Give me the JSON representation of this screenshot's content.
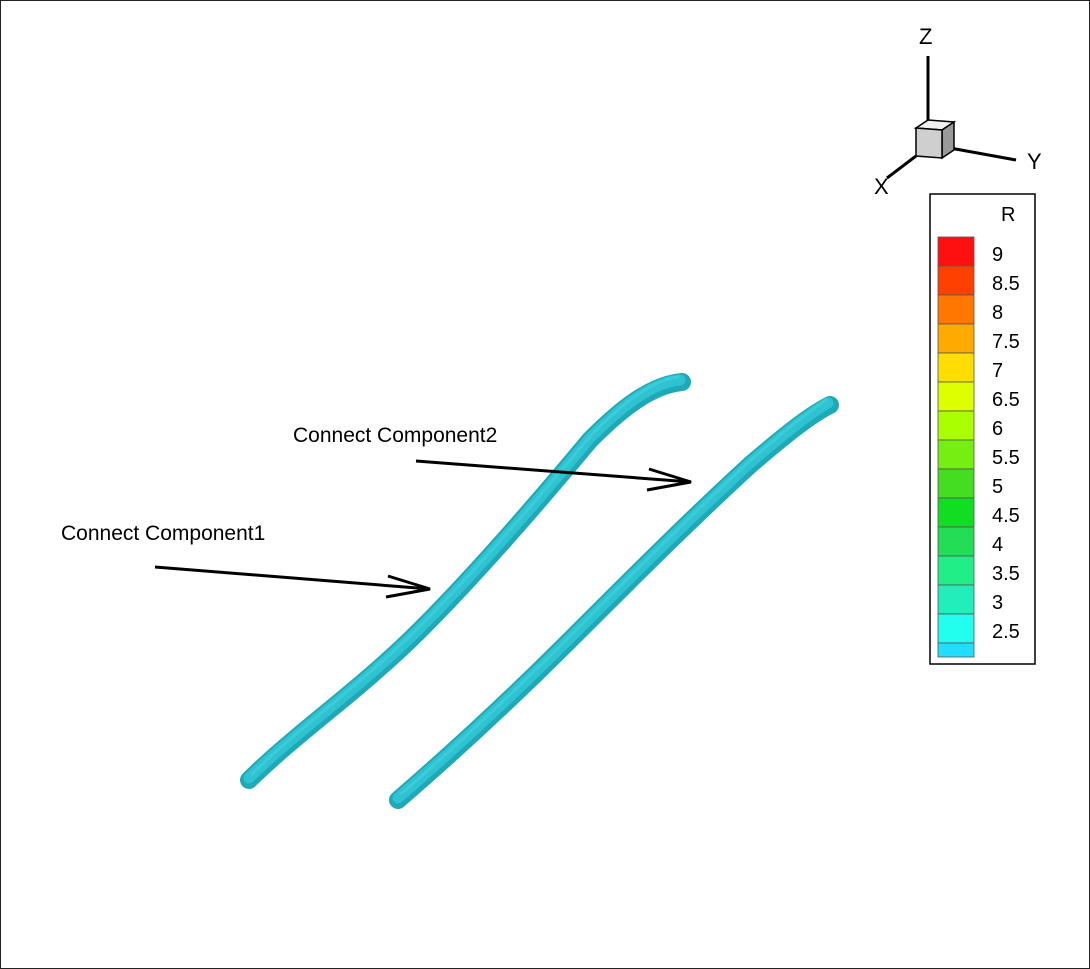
{
  "annotations": {
    "component1": "Connect Component1",
    "component2": "Connect Component2"
  },
  "axes_triad": {
    "x_label": "X",
    "y_label": "Y",
    "z_label": "Z"
  },
  "legend": {
    "variable": "R",
    "levels": [
      {
        "label": "9",
        "color": "#ff1010"
      },
      {
        "label": "8.5",
        "color": "#ff4000"
      },
      {
        "label": "8",
        "color": "#ff7700"
      },
      {
        "label": "7.5",
        "color": "#ffaa00"
      },
      {
        "label": "7",
        "color": "#ffdd00"
      },
      {
        "label": "6.5",
        "color": "#ddff00"
      },
      {
        "label": "6",
        "color": "#aaff00"
      },
      {
        "label": "5.5",
        "color": "#77ee11"
      },
      {
        "label": "5",
        "color": "#44dd22"
      },
      {
        "label": "4.5",
        "color": "#11dd22"
      },
      {
        "label": "4",
        "color": "#22dd55"
      },
      {
        "label": "3.5",
        "color": "#22ee88"
      },
      {
        "label": "3",
        "color": "#22eebb"
      },
      {
        "label": "2.5",
        "color": "#22ffee"
      },
      {
        "label": "",
        "color": "#22ddff"
      }
    ]
  },
  "colors": {
    "tube": "#28b8c8",
    "tube_highlight": "#38d4e0"
  }
}
